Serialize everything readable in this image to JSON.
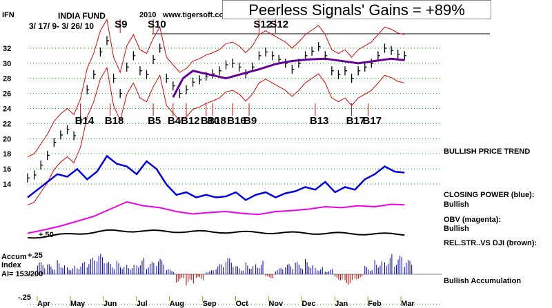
{
  "header": {
    "ticker": "IFN",
    "title": "INDIA FUND",
    "year": "2010",
    "site": "www.tigersoft.com",
    "date_range": "3/ 17/ 9- 3/ 26/ 10",
    "banner": "Peerless Signals' Gains = +89%"
  },
  "side_labels": {
    "trend": "BULLISH PRICE TREND",
    "closing_power": "CLOSING POWER (blue):",
    "closing_power_status": "Bullish",
    "obv": "OBV (magenta):",
    "obv_status": "Bullish",
    "relstr": "REL.STR..VS DJI (brown):",
    "accumulation": "Bullish Accumulation"
  },
  "accum_panel": {
    "title_line1": "Accum",
    "title_line2": "Index",
    "ai_text": "AI= 153/200",
    "level_upper": "+.25",
    "level_lower": "-.25",
    "relstr_level": "+.50"
  },
  "colors": {
    "price_bars": "#000000",
    "bands": "#dd0000",
    "ma": "#660099",
    "closing_power": "#0000ee",
    "obv": "#ee00ee",
    "relstr": "#000000",
    "accum_pos": "#0000cc",
    "accum_neg": "#cc0000",
    "signals": "#dd0000",
    "grid": "#00aa00"
  },
  "chart_data": {
    "type": "line",
    "y_ticks": [
      14,
      16,
      18,
      20,
      22,
      24,
      26,
      28,
      30,
      32
    ],
    "ylim": [
      13,
      34
    ],
    "x_months": [
      "Apr",
      "May",
      "Jun",
      "Jul",
      "Aug",
      "Sep",
      "Oct",
      "Nov",
      "Dec",
      "Jan",
      "Feb",
      "Mar"
    ],
    "grid": true,
    "series": [
      {
        "name": "price",
        "x": [
          0,
          0.2,
          0.4,
          0.6,
          0.8,
          1.0,
          1.2,
          1.4,
          1.6,
          1.8,
          2.0,
          2.2,
          2.4,
          2.6,
          2.8,
          3.0,
          3.2,
          3.4,
          3.6,
          3.8,
          4.0,
          4.2,
          4.4,
          4.6,
          4.8,
          5.0,
          5.2,
          5.4,
          5.6,
          5.8,
          6.0,
          6.2,
          6.4,
          6.6,
          6.8,
          7.0,
          7.2,
          7.4,
          7.6,
          7.8,
          8.0,
          8.2,
          8.4,
          8.6,
          8.8,
          9.0,
          9.2,
          9.4,
          9.6,
          9.8,
          10.0,
          10.2,
          10.4,
          10.6,
          10.8,
          11.0,
          11.2,
          11.4
        ],
        "values": [
          14.8,
          15.2,
          16.5,
          17.8,
          19.5,
          20.5,
          21.2,
          20.4,
          22.5,
          26.5,
          28.5,
          31.5,
          33.0,
          28.0,
          26.0,
          29.5,
          31.0,
          29.0,
          28.5,
          30.5,
          32.0,
          28.0,
          27.0,
          26.0,
          26.5,
          27.5,
          27.8,
          28.3,
          28.6,
          29.0,
          29.8,
          30.0,
          29.5,
          28.6,
          29.5,
          31.0,
          31.5,
          31.0,
          30.5,
          30.0,
          29.2,
          30.0,
          31.0,
          31.6,
          32.2,
          31.0,
          29.0,
          28.5,
          29.0,
          28.0,
          29.0,
          29.5,
          30.0,
          31.0,
          32.0,
          31.7,
          31.2,
          31.0
        ]
      },
      {
        "name": "moving-average",
        "x": [
          4.4,
          4.7,
          5.0,
          5.5,
          6.0,
          6.5,
          7.0,
          7.5,
          8.0,
          8.5,
          9.0,
          9.5,
          10.0,
          10.5,
          11.0,
          11.4
        ],
        "values": [
          25.5,
          28.0,
          29.0,
          28.5,
          28.0,
          28.6,
          29.2,
          29.9,
          30.3,
          30.5,
          30.6,
          30.3,
          30.0,
          30.3,
          30.6,
          30.4
        ]
      },
      {
        "name": "closing-power",
        "x": [
          0,
          0.3,
          0.6,
          0.9,
          1.2,
          1.5,
          1.8,
          2.1,
          2.4,
          2.7,
          3.0,
          3.3,
          3.6,
          3.9,
          4.2,
          4.5,
          4.8,
          5.1,
          5.4,
          5.7,
          6.0,
          6.3,
          6.6,
          6.9,
          7.2,
          7.5,
          7.8,
          8.1,
          8.4,
          8.7,
          9.0,
          9.3,
          9.6,
          9.9,
          10.2,
          10.5,
          10.8,
          11.1,
          11.4
        ],
        "values": [
          0.1,
          0.25,
          0.4,
          0.55,
          0.5,
          0.65,
          0.45,
          0.6,
          0.9,
          0.75,
          0.7,
          0.55,
          0.8,
          0.65,
          0.35,
          0.15,
          0.2,
          0.1,
          0.15,
          0.1,
          0.12,
          0.2,
          0.05,
          0.15,
          0.2,
          0.1,
          0.18,
          0.22,
          0.3,
          0.25,
          0.4,
          0.2,
          0.3,
          0.25,
          0.45,
          0.55,
          0.7,
          0.6,
          0.58
        ]
      },
      {
        "name": "obv",
        "x": [
          0,
          0.5,
          1.0,
          1.5,
          2.0,
          2.5,
          3.0,
          3.5,
          4.0,
          4.5,
          5.0,
          5.5,
          6.0,
          6.5,
          7.0,
          7.5,
          8.0,
          8.5,
          9.0,
          9.5,
          10.0,
          10.5,
          11.0,
          11.4
        ],
        "values": [
          0.05,
          0.12,
          0.2,
          0.3,
          0.4,
          0.55,
          0.7,
          0.62,
          0.58,
          0.5,
          0.45,
          0.48,
          0.5,
          0.46,
          0.44,
          0.5,
          0.52,
          0.55,
          0.6,
          0.58,
          0.62,
          0.6,
          0.65,
          0.64
        ]
      },
      {
        "name": "accumulation",
        "x": [
          0.3,
          0.6,
          0.9,
          1.2,
          1.5,
          1.8,
          2.1,
          2.4,
          2.7,
          3.0,
          3.3,
          3.6,
          3.9,
          4.2,
          4.5,
          4.8,
          5.1,
          5.4,
          5.7,
          6.0,
          6.3,
          6.6,
          6.9,
          7.2,
          7.5,
          7.8,
          8.1,
          8.4,
          8.7,
          9.0,
          9.3,
          9.6,
          9.9,
          10.2,
          10.5,
          10.8,
          11.1,
          11.4
        ],
        "values": [
          0.12,
          0.1,
          0.14,
          0.09,
          0.12,
          0.16,
          0.2,
          0.12,
          0.13,
          0.11,
          0.16,
          0.12,
          0.15,
          0.05,
          -0.08,
          -0.12,
          -0.06,
          0.04,
          0.1,
          0.16,
          0.08,
          0.12,
          0.14,
          -0.04,
          0.06,
          0.1,
          0.12,
          0.15,
          0.08,
          0.05,
          -0.06,
          -0.1,
          -0.05,
          0.08,
          0.16,
          0.2,
          0.18,
          0.14
        ]
      }
    ],
    "signals": [
      {
        "label": "S9",
        "x": 2.8
      },
      {
        "label": "S10",
        "x": 3.8
      },
      {
        "label": "S12",
        "x": 7.0
      },
      {
        "label": "S12",
        "x": 7.5
      },
      {
        "label": "B5",
        "x": 3.8
      },
      {
        "label": "B4",
        "x": 4.4
      },
      {
        "label": "B12",
        "x": 4.8
      },
      {
        "label": "B10",
        "x": 5.4
      },
      {
        "label": "B18",
        "x": 5.6
      },
      {
        "label": "B16",
        "x": 6.2
      },
      {
        "label": "B9",
        "x": 6.7
      },
      {
        "label": "B13",
        "x": 8.7
      },
      {
        "label": "B17",
        "x": 9.8
      },
      {
        "label": "B17",
        "x": 10.3
      },
      {
        "label": "B18",
        "x": 2.5
      },
      {
        "label": "B14",
        "x": 1.6
      }
    ]
  }
}
